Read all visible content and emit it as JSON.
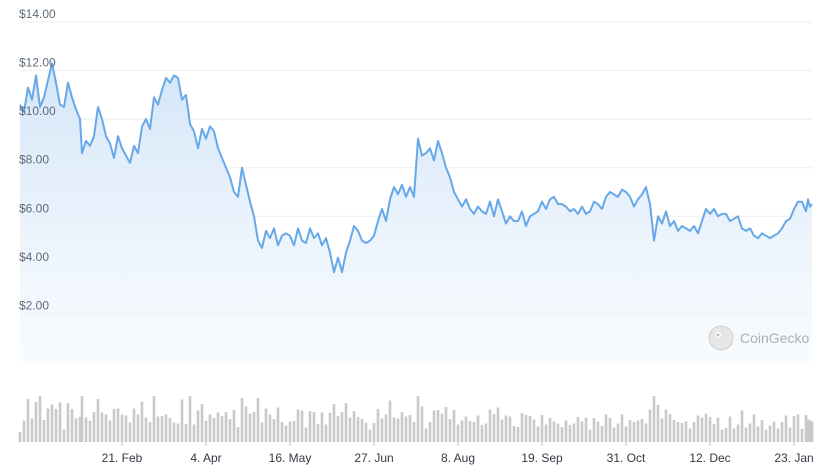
{
  "chart_data": {
    "type": "area",
    "watermark": "CoinGecko",
    "colors": {
      "line": "#66a8e8",
      "fill_top": "#cfe3f7",
      "fill_bottom": "#f4f9fe",
      "volume": "#c9c9c9",
      "grid": "#eeeeee"
    },
    "grid": true,
    "ylim": [
      0,
      14
    ],
    "y_ticks": [
      {
        "value": 2,
        "label": "$2.00"
      },
      {
        "value": 4,
        "label": "$4.00"
      },
      {
        "value": 6,
        "label": "$6.00"
      },
      {
        "value": 8,
        "label": "$8.00"
      },
      {
        "value": 10,
        "label": "$10.00"
      },
      {
        "value": 12,
        "label": "$12.00"
      },
      {
        "value": 14,
        "label": "$14.00"
      }
    ],
    "x_ticks": [
      {
        "label": "21. Feb",
        "x": 51
      },
      {
        "label": "4. Apr",
        "x": 93
      },
      {
        "label": "16. May",
        "x": 135
      },
      {
        "label": "27. Jun",
        "x": 177
      },
      {
        "label": "8. Aug",
        "x": 219
      },
      {
        "label": "19. Sep",
        "x": 261
      },
      {
        "label": "31. Oct",
        "x": 303
      },
      {
        "label": "12. Dec",
        "x": 345
      },
      {
        "label": "23. Jan",
        "x": 387
      }
    ],
    "x_domain": [
      0,
      396
    ],
    "series": [
      {
        "price": [
          [
            0,
            10.6
          ],
          [
            2,
            10.3
          ],
          [
            4,
            11.3
          ],
          [
            6,
            10.8
          ],
          [
            8,
            11.8
          ],
          [
            10,
            10.5
          ],
          [
            12,
            10.9
          ],
          [
            14,
            11.6
          ],
          [
            16,
            12.3
          ],
          [
            18,
            11.5
          ],
          [
            20,
            10.6
          ],
          [
            22,
            10.5
          ],
          [
            24,
            11.5
          ],
          [
            26,
            10.9
          ],
          [
            28,
            10.4
          ],
          [
            30,
            10.0
          ],
          [
            31,
            8.6
          ],
          [
            33,
            9.1
          ],
          [
            35,
            8.9
          ],
          [
            37,
            9.3
          ],
          [
            39,
            10.5
          ],
          [
            41,
            10.0
          ],
          [
            43,
            9.3
          ],
          [
            45,
            9.0
          ],
          [
            47,
            8.4
          ],
          [
            49,
            9.3
          ],
          [
            51,
            8.8
          ],
          [
            53,
            8.5
          ],
          [
            55,
            8.2
          ],
          [
            57,
            8.9
          ],
          [
            59,
            8.6
          ],
          [
            61,
            9.7
          ],
          [
            63,
            10.0
          ],
          [
            65,
            9.6
          ],
          [
            67,
            10.9
          ],
          [
            69,
            10.6
          ],
          [
            71,
            11.2
          ],
          [
            73,
            11.7
          ],
          [
            75,
            11.5
          ],
          [
            77,
            11.8
          ],
          [
            79,
            11.7
          ],
          [
            81,
            10.8
          ],
          [
            83,
            11.0
          ],
          [
            85,
            9.8
          ],
          [
            87,
            9.5
          ],
          [
            89,
            8.8
          ],
          [
            91,
            9.6
          ],
          [
            93,
            9.2
          ],
          [
            95,
            9.7
          ],
          [
            97,
            9.5
          ],
          [
            99,
            8.8
          ],
          [
            101,
            8.4
          ],
          [
            103,
            8.0
          ],
          [
            105,
            7.6
          ],
          [
            107,
            7.0
          ],
          [
            109,
            6.8
          ],
          [
            111,
            8.0
          ],
          [
            113,
            7.3
          ],
          [
            115,
            6.6
          ],
          [
            117,
            6.0
          ],
          [
            119,
            5.0
          ],
          [
            121,
            4.7
          ],
          [
            123,
            5.4
          ],
          [
            125,
            5.1
          ],
          [
            127,
            5.5
          ],
          [
            129,
            4.8
          ],
          [
            131,
            5.2
          ],
          [
            133,
            5.3
          ],
          [
            135,
            5.2
          ],
          [
            137,
            4.8
          ],
          [
            139,
            5.5
          ],
          [
            141,
            5.0
          ],
          [
            143,
            4.9
          ],
          [
            145,
            5.5
          ],
          [
            147,
            5.1
          ],
          [
            149,
            5.3
          ],
          [
            151,
            4.8
          ],
          [
            153,
            5.1
          ],
          [
            155,
            4.5
          ],
          [
            157,
            3.7
          ],
          [
            159,
            4.3
          ],
          [
            161,
            3.7
          ],
          [
            163,
            4.5
          ],
          [
            165,
            5.0
          ],
          [
            167,
            5.6
          ],
          [
            169,
            5.4
          ],
          [
            171,
            5.0
          ],
          [
            173,
            4.9
          ],
          [
            175,
            5.0
          ],
          [
            177,
            5.2
          ],
          [
            179,
            5.8
          ],
          [
            181,
            6.3
          ],
          [
            183,
            5.8
          ],
          [
            185,
            6.7
          ],
          [
            187,
            7.2
          ],
          [
            189,
            6.9
          ],
          [
            191,
            7.3
          ],
          [
            193,
            6.8
          ],
          [
            195,
            7.2
          ],
          [
            197,
            6.8
          ],
          [
            199,
            9.2
          ],
          [
            201,
            8.5
          ],
          [
            203,
            8.6
          ],
          [
            205,
            8.8
          ],
          [
            207,
            8.3
          ],
          [
            209,
            9.1
          ],
          [
            211,
            8.6
          ],
          [
            213,
            8.0
          ],
          [
            215,
            7.6
          ],
          [
            217,
            7.0
          ],
          [
            219,
            6.7
          ],
          [
            221,
            6.4
          ],
          [
            223,
            6.7
          ],
          [
            225,
            6.3
          ],
          [
            227,
            6.1
          ],
          [
            229,
            6.4
          ],
          [
            231,
            6.2
          ],
          [
            233,
            6.1
          ],
          [
            235,
            6.6
          ],
          [
            237,
            6.0
          ],
          [
            239,
            6.7
          ],
          [
            241,
            6.2
          ],
          [
            243,
            5.7
          ],
          [
            245,
            6.0
          ],
          [
            247,
            5.8
          ],
          [
            249,
            5.8
          ],
          [
            251,
            6.2
          ],
          [
            253,
            5.6
          ],
          [
            255,
            6.0
          ],
          [
            257,
            6.1
          ],
          [
            259,
            6.2
          ],
          [
            261,
            6.6
          ],
          [
            263,
            6.3
          ],
          [
            265,
            6.7
          ],
          [
            267,
            6.8
          ],
          [
            269,
            6.5
          ],
          [
            271,
            6.5
          ],
          [
            273,
            6.4
          ],
          [
            275,
            6.2
          ],
          [
            277,
            6.3
          ],
          [
            279,
            6.1
          ],
          [
            281,
            6.4
          ],
          [
            283,
            6.1
          ],
          [
            285,
            6.2
          ],
          [
            287,
            6.6
          ],
          [
            289,
            6.5
          ],
          [
            291,
            6.3
          ],
          [
            293,
            6.8
          ],
          [
            295,
            7.0
          ],
          [
            297,
            6.9
          ],
          [
            299,
            6.8
          ],
          [
            301,
            7.1
          ],
          [
            303,
            7.0
          ],
          [
            305,
            6.8
          ],
          [
            307,
            6.4
          ],
          [
            309,
            6.7
          ],
          [
            311,
            6.9
          ],
          [
            313,
            7.2
          ],
          [
            315,
            6.5
          ],
          [
            317,
            5.0
          ],
          [
            319,
            6.0
          ],
          [
            321,
            5.7
          ],
          [
            323,
            6.2
          ],
          [
            325,
            5.6
          ],
          [
            327,
            5.8
          ],
          [
            329,
            5.4
          ],
          [
            331,
            5.6
          ],
          [
            333,
            5.5
          ],
          [
            335,
            5.4
          ],
          [
            337,
            5.6
          ],
          [
            339,
            5.3
          ],
          [
            341,
            5.8
          ],
          [
            343,
            6.3
          ],
          [
            345,
            6.1
          ],
          [
            347,
            6.3
          ],
          [
            349,
            6.0
          ],
          [
            351,
            6.1
          ],
          [
            353,
            6.1
          ],
          [
            355,
            5.8
          ],
          [
            357,
            5.9
          ],
          [
            359,
            6.0
          ],
          [
            361,
            5.5
          ],
          [
            363,
            5.4
          ],
          [
            365,
            5.5
          ],
          [
            367,
            5.2
          ],
          [
            369,
            5.1
          ],
          [
            371,
            5.3
          ],
          [
            373,
            5.2
          ],
          [
            375,
            5.1
          ],
          [
            377,
            5.2
          ],
          [
            379,
            5.3
          ],
          [
            381,
            5.5
          ],
          [
            383,
            5.8
          ],
          [
            385,
            5.9
          ],
          [
            387,
            6.3
          ],
          [
            389,
            6.6
          ],
          [
            391,
            6.6
          ],
          [
            393,
            6.2
          ],
          [
            394,
            6.7
          ],
          [
            395,
            6.4
          ],
          [
            396,
            6.5
          ]
        ]
      }
    ]
  }
}
